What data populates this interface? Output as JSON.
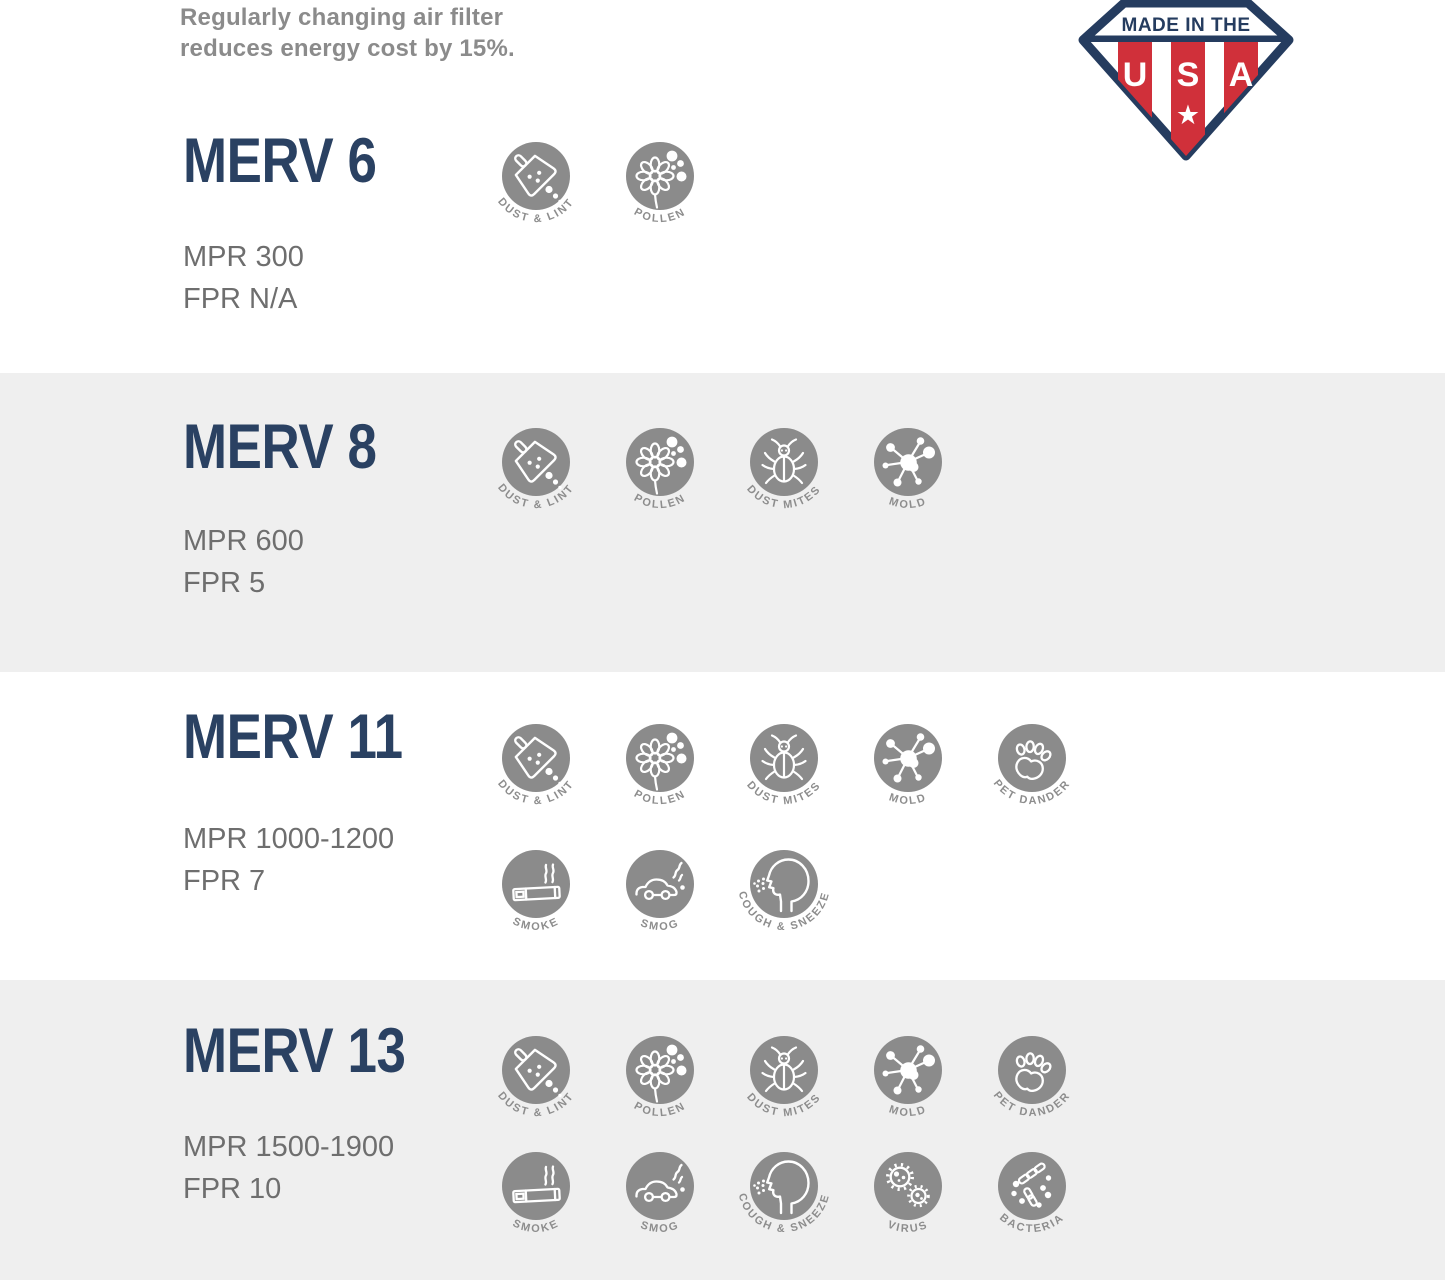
{
  "header": {
    "note_line1": "Regularly changing air filter",
    "note_line2": "reduces energy cost by 15%.",
    "badge": {
      "top_text": "MADE IN THE",
      "letters": [
        "U",
        "S",
        "A"
      ],
      "star": "★"
    }
  },
  "colors": {
    "navy": "#2a4162",
    "badge_navy": "#253c5f",
    "badge_red": "#d0303a",
    "icon_gray": "#8b8b8b",
    "label_gray": "#8d8d8d",
    "text_gray": "#6e6e6e",
    "note_gray": "#8b8b8b",
    "section_bg": "#efefef"
  },
  "icon_labels": {
    "dust-lint": "DUST & LINT",
    "pollen": "POLLEN",
    "dust-mites": "DUST MITES",
    "mold": "MOLD",
    "pet-dander": "PET DANDER",
    "smoke": "SMOKE",
    "smog": "SMOG",
    "cough-sneeze": "COUGH & SNEEZE",
    "virus": "VIRUS",
    "bacteria": "BACTERIA"
  },
  "sections": [
    {
      "title": "MERV 6",
      "mpr": "MPR 300",
      "fpr": "FPR N/A",
      "rows": [
        [
          "dust-lint",
          "pollen"
        ]
      ]
    },
    {
      "title": "MERV 8",
      "mpr": "MPR 600",
      "fpr": "FPR 5",
      "rows": [
        [
          "dust-lint",
          "pollen",
          "dust-mites",
          "mold"
        ]
      ]
    },
    {
      "title": "MERV 11",
      "mpr": "MPR 1000-1200",
      "fpr": "FPR 7",
      "rows": [
        [
          "dust-lint",
          "pollen",
          "dust-mites",
          "mold",
          "pet-dander"
        ],
        [
          "smoke",
          "smog",
          "cough-sneeze"
        ]
      ]
    },
    {
      "title": "MERV 13",
      "mpr": "MPR 1500-1900",
      "fpr": "FPR 10",
      "rows": [
        [
          "dust-lint",
          "pollen",
          "dust-mites",
          "mold",
          "pet-dander"
        ],
        [
          "smoke",
          "smog",
          "cough-sneeze",
          "virus",
          "bacteria"
        ]
      ]
    }
  ]
}
